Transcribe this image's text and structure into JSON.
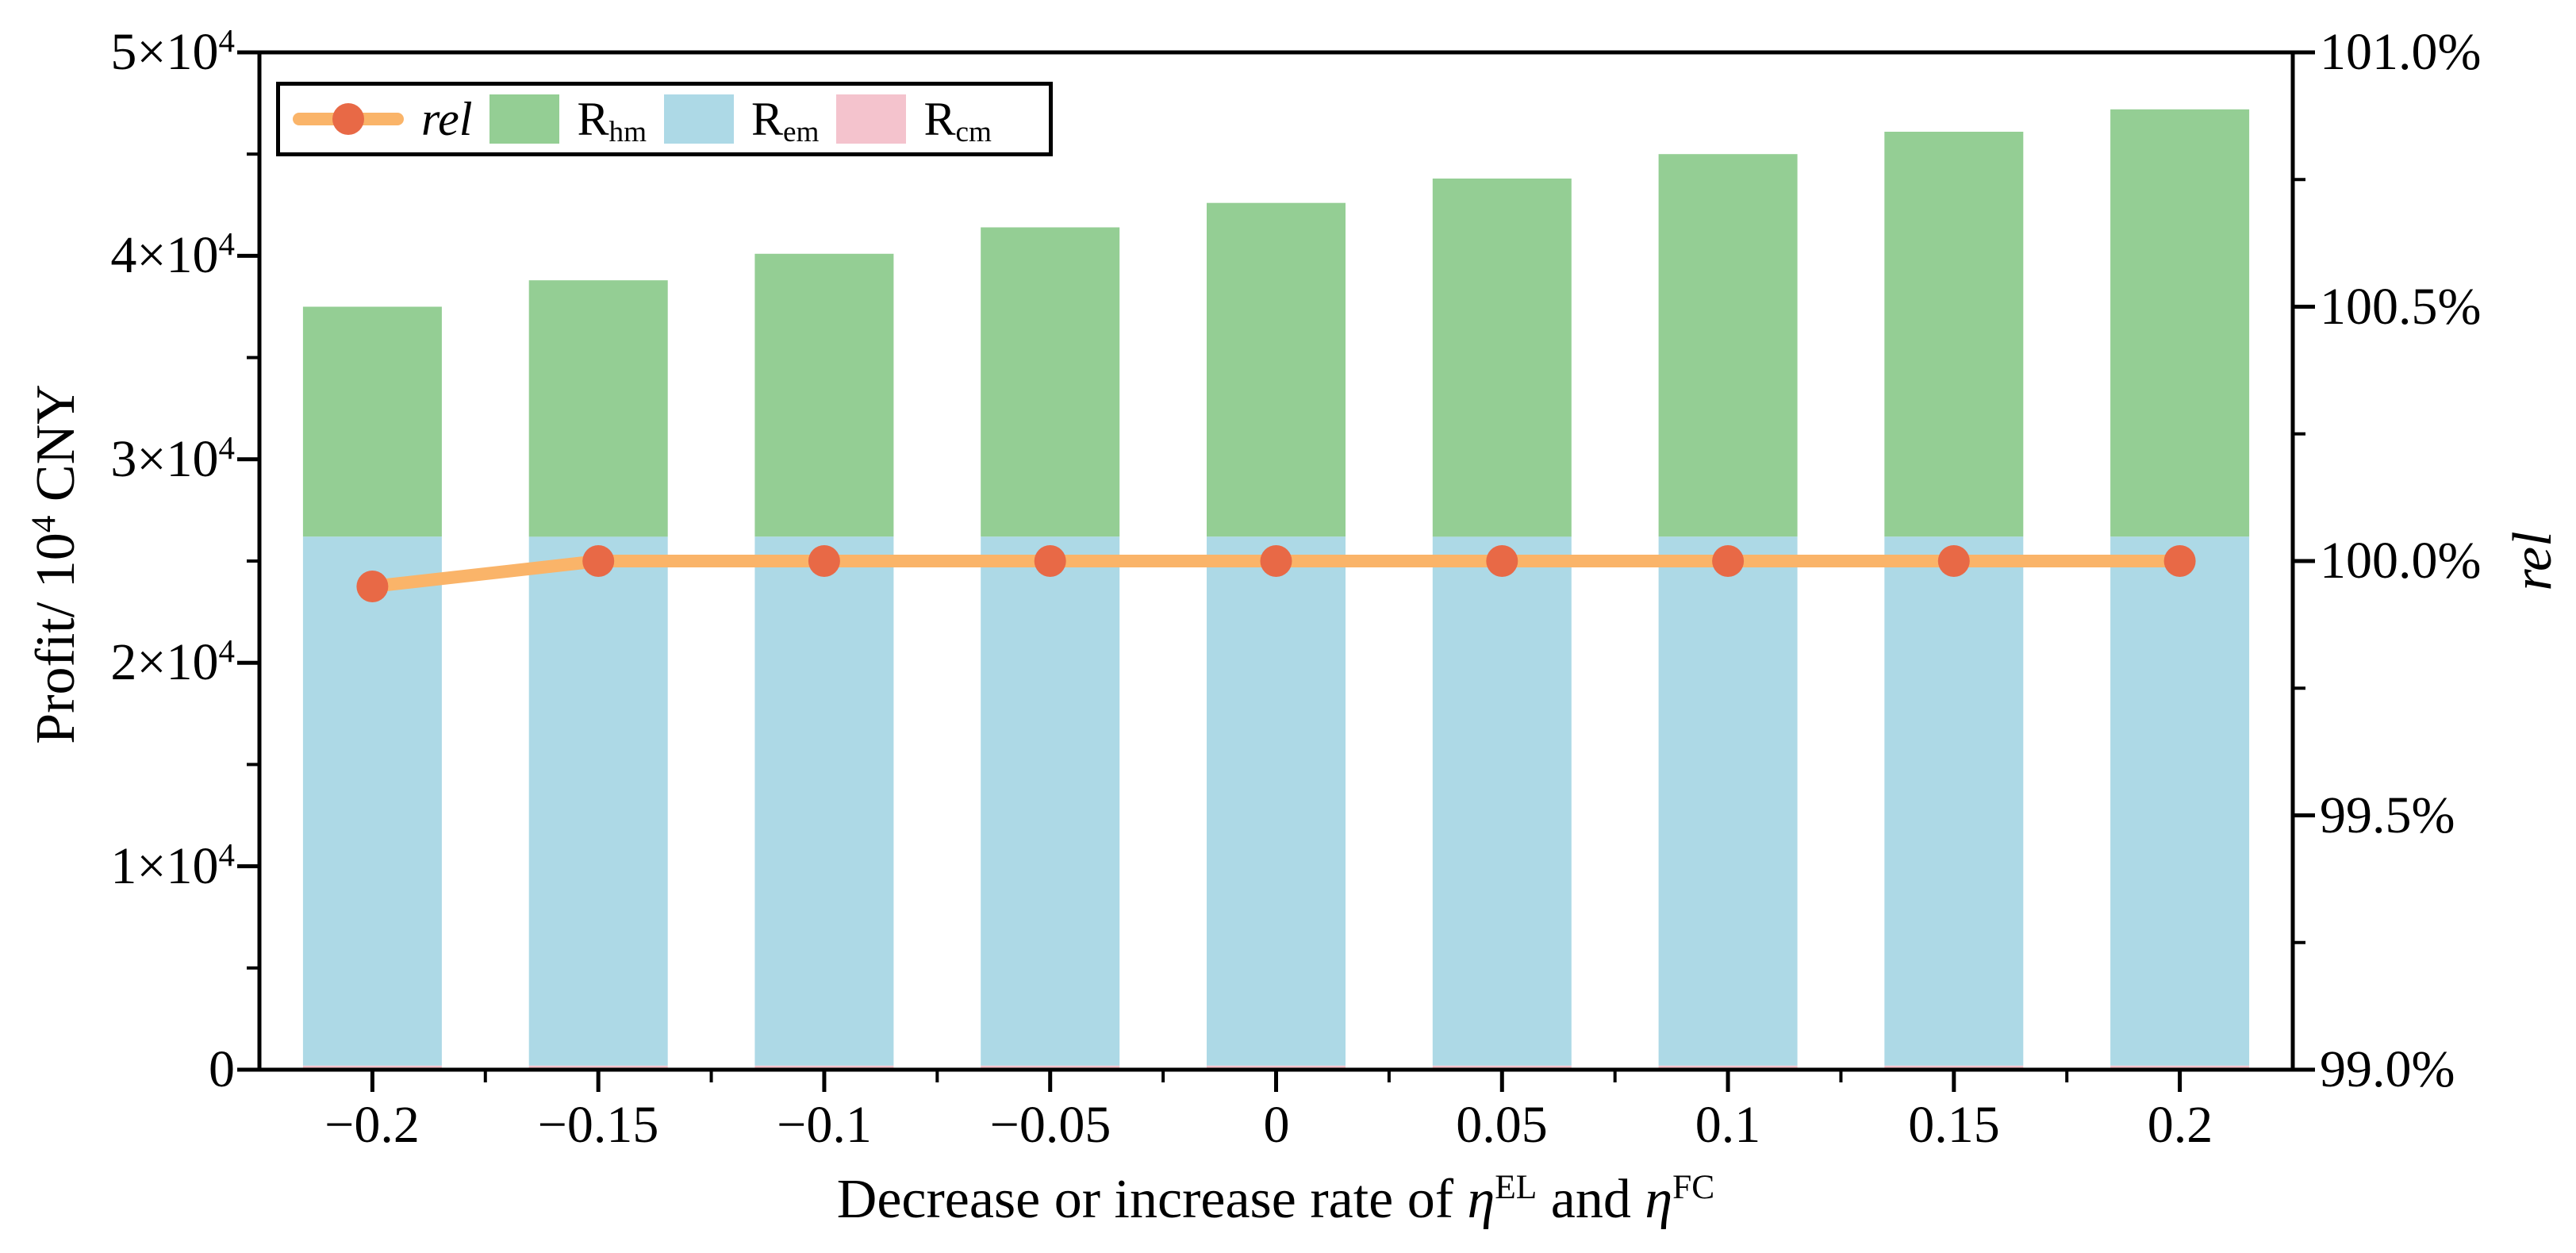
{
  "figure": {
    "background": "#ffffff",
    "axis_color": "#000000"
  },
  "chart_data": {
    "type": "bar",
    "subtype": "stacked-bar-with-line-overlay",
    "categories": [
      "−0.2",
      "−0.15",
      "−0.1",
      "−0.05",
      "0",
      "0.05",
      "0.1",
      "0.15",
      "0.2"
    ],
    "series": [
      {
        "name": "R_cm",
        "role": "bar",
        "axis": "left",
        "color": "#f4c3cd",
        "values_10k_cny": [
          0.02,
          0.02,
          0.02,
          0.02,
          0.02,
          0.02,
          0.02,
          0.02,
          0.02
        ]
      },
      {
        "name": "R_em",
        "role": "bar",
        "axis": "left",
        "color": "#add9e6",
        "values_10k_cny": [
          2.6,
          2.6,
          2.6,
          2.6,
          2.6,
          2.6,
          2.6,
          2.6,
          2.6
        ]
      },
      {
        "name": "R_hm",
        "role": "bar",
        "axis": "left",
        "color": "#94ce94",
        "values_10k_cny": [
          1.13,
          1.26,
          1.39,
          1.52,
          1.64,
          1.76,
          1.88,
          1.99,
          2.1
        ]
      },
      {
        "name": "rel",
        "role": "line",
        "axis": "right",
        "color": "#fab469",
        "marker_color": "#e86946",
        "values_percent": [
          99.95,
          100.0,
          100.0,
          100.0,
          100.0,
          100.0,
          100.0,
          100.0,
          100.0
        ]
      }
    ],
    "bar_totals_10k_cny": [
      3.75,
      3.88,
      4.01,
      4.14,
      4.26,
      4.38,
      4.5,
      4.61,
      4.72
    ],
    "xlabel_rich": [
      {
        "t": "Decrease or increase rate of "
      },
      {
        "i": "η"
      },
      {
        "sup": "EL"
      },
      {
        "t": " and "
      },
      {
        "i": "η"
      },
      {
        "sup": "FC"
      }
    ],
    "left_axis": {
      "title_rich": [
        {
          "t": "Profit/ 10"
        },
        {
          "sup": "4"
        },
        {
          "t": " CNY"
        }
      ],
      "range_10k": [
        0,
        5
      ],
      "major_step_10k": 1,
      "minor_step_10k": 0.5,
      "tick_values_10k": [
        0,
        1,
        2,
        3,
        4,
        5
      ],
      "tick_labels_rich": [
        [
          {
            "t": "0"
          }
        ],
        [
          {
            "t": "1×10"
          },
          {
            "sup": "4"
          }
        ],
        [
          {
            "t": "2×10"
          },
          {
            "sup": "4"
          }
        ],
        [
          {
            "t": "3×10"
          },
          {
            "sup": "4"
          }
        ],
        [
          {
            "t": "4×10"
          },
          {
            "sup": "4"
          }
        ],
        [
          {
            "t": "5×10"
          },
          {
            "sup": "4"
          }
        ]
      ]
    },
    "right_axis": {
      "title_rich": [
        {
          "i": "rel"
        }
      ],
      "range_percent": [
        99.0,
        101.0
      ],
      "major_step_percent": 0.5,
      "minor_step_percent": 0.25,
      "tick_values_percent": [
        99.0,
        99.5,
        100.0,
        100.5,
        101.0
      ],
      "tick_labels": [
        "99.0%",
        "99.5%",
        "100.0%",
        "100.5%",
        "101.0%"
      ]
    },
    "grid": "off",
    "legend": {
      "position": "top-left-inside",
      "entries": [
        {
          "key": "rel",
          "swatch": "line-marker",
          "line_color": "#fab469",
          "marker_color": "#e86946",
          "label_rich": [
            {
              "i": "rel"
            }
          ]
        },
        {
          "key": "R_hm",
          "swatch": "rect",
          "color": "#94ce94",
          "label_rich": [
            {
              "t": "R"
            },
            {
              "sub": "hm"
            }
          ]
        },
        {
          "key": "R_em",
          "swatch": "rect",
          "color": "#add9e6",
          "label_rich": [
            {
              "t": "R"
            },
            {
              "sub": "em"
            }
          ]
        },
        {
          "key": "R_cm",
          "swatch": "rect",
          "color": "#f4c3cd",
          "label_rich": [
            {
              "t": "R"
            },
            {
              "sub": "cm"
            }
          ]
        }
      ]
    }
  }
}
